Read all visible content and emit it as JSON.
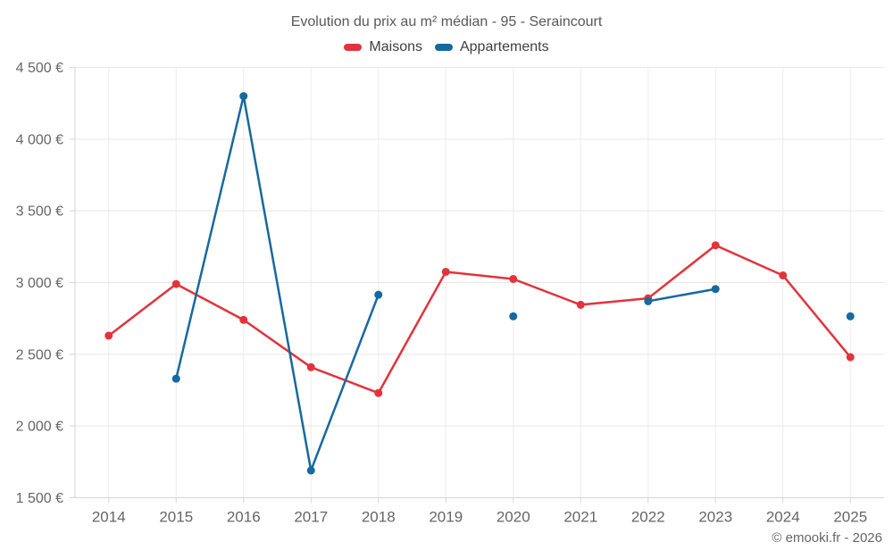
{
  "header": {
    "title": "Evolution du prix au m² médian - 95 - Seraincourt"
  },
  "watermark": "© emooki.fr - 2026",
  "chart_data": {
    "type": "line",
    "title": "Evolution du prix au m² médian - 95 - Seraincourt",
    "legend_position": "top",
    "grid": "on",
    "categories": [
      "2014",
      "2015",
      "2016",
      "2017",
      "2018",
      "2019",
      "2020",
      "2021",
      "2022",
      "2023",
      "2024",
      "2025"
    ],
    "series": [
      {
        "name": "Maisons",
        "color": "#e2333c",
        "values": [
          2630,
          2990,
          2740,
          2410,
          2230,
          3075,
          3025,
          2845,
          2890,
          3260,
          3050,
          2480
        ]
      },
      {
        "name": "Appartements",
        "color": "#17699f",
        "values": [
          null,
          2330,
          4300,
          1690,
          2915,
          null,
          2765,
          null,
          2870,
          2955,
          null,
          2765
        ]
      }
    ],
    "ylim": [
      1500,
      4500
    ],
    "yticks": [
      {
        "value": 1500,
        "label": "1 500 €"
      },
      {
        "value": 2000,
        "label": "2 000 €"
      },
      {
        "value": 2500,
        "label": "2 500 €"
      },
      {
        "value": 3000,
        "label": "3 000 €"
      },
      {
        "value": 3500,
        "label": "3 500 €"
      },
      {
        "value": 4000,
        "label": "4 000 €"
      },
      {
        "value": 4500,
        "label": "4 500 €"
      }
    ],
    "xlabel": "",
    "ylabel": ""
  }
}
